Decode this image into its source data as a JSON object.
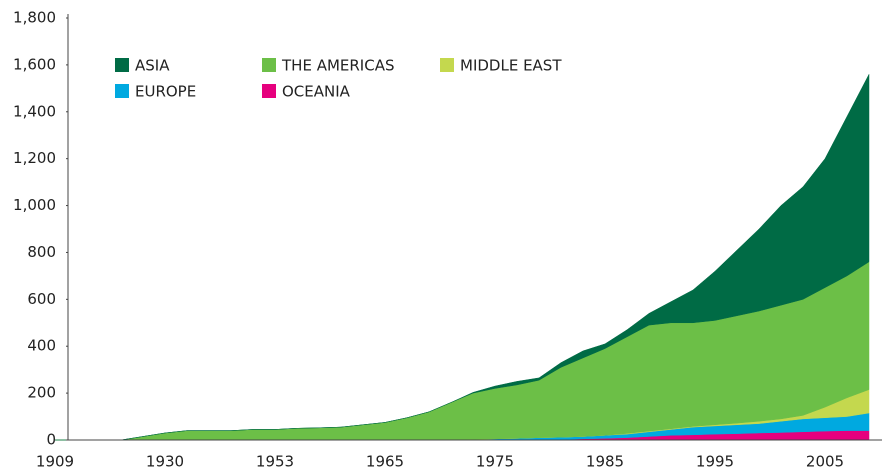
{
  "chart_data": {
    "type": "stacked-area",
    "categories": [
      "1909",
      null,
      null,
      null,
      null,
      "1930",
      null,
      null,
      null,
      null,
      "1953",
      null,
      null,
      null,
      null,
      "1965",
      null,
      null,
      null,
      null,
      "1975",
      null,
      null,
      null,
      null,
      "1985",
      null,
      null,
      null,
      null,
      "1995",
      null,
      null,
      null,
      null,
      "2005",
      null,
      null
    ],
    "series": [
      {
        "name": "ASIA",
        "color": "#006b45",
        "values": [
          0,
          0,
          0,
          0,
          0,
          0,
          0,
          0,
          0,
          0,
          0,
          0,
          0,
          0,
          0,
          0,
          0,
          0,
          0,
          3,
          10,
          15,
          10,
          20,
          30,
          20,
          30,
          50,
          90,
          140,
          210,
          280,
          350,
          425,
          480,
          550,
          680,
          800
        ]
      },
      {
        "name": "THE AMERICAS",
        "color": "#6cbf47",
        "values": [
          0,
          0,
          0,
          0,
          15,
          30,
          40,
          40,
          40,
          45,
          45,
          50,
          52,
          55,
          65,
          75,
          95,
          120,
          160,
          197,
          215,
          228,
          245,
          298,
          335,
          370,
          412,
          452,
          452,
          442,
          445,
          458,
          470,
          485,
          495,
          510,
          520,
          545
        ]
      },
      {
        "name": "MIDDLE EAST",
        "color": "#c4d84e",
        "values": [
          0,
          0,
          0,
          0,
          0,
          0,
          0,
          0,
          0,
          0,
          0,
          0,
          0,
          0,
          0,
          0,
          0,
          0,
          0,
          0,
          0,
          0,
          0,
          0,
          0,
          0,
          3,
          3,
          3,
          3,
          5,
          7,
          10,
          10,
          15,
          45,
          80,
          100
        ]
      },
      {
        "name": "EUROPE",
        "color": "#00a9e0",
        "values": [
          0,
          0,
          0,
          0,
          0,
          0,
          0,
          0,
          0,
          0,
          0,
          0,
          0,
          0,
          0,
          0,
          0,
          0,
          0,
          3,
          5,
          7,
          10,
          10,
          10,
          13,
          15,
          20,
          25,
          33,
          35,
          38,
          40,
          48,
          55,
          57,
          60,
          75
        ]
      },
      {
        "name": "OCEANIA",
        "color": "#e6007e",
        "values": [
          0,
          0,
          0,
          0,
          0,
          0,
          0,
          0,
          0,
          0,
          0,
          0,
          0,
          0,
          0,
          0,
          0,
          0,
          0,
          0,
          0,
          0,
          0,
          2,
          5,
          7,
          10,
          15,
          20,
          22,
          25,
          27,
          30,
          32,
          35,
          38,
          40,
          40
        ]
      }
    ],
    "ylim": [
      0,
      1800
    ],
    "yticks": [
      0,
      200,
      400,
      600,
      800,
      {
        "value": 1000,
        "label": "1,000"
      },
      {
        "value": 1200,
        "label": "1,200"
      },
      {
        "value": 1400,
        "label": "1,400"
      },
      {
        "value": 1600,
        "label": "1,600"
      },
      {
        "value": 1800,
        "label": "1,800"
      }
    ],
    "grid": false
  }
}
